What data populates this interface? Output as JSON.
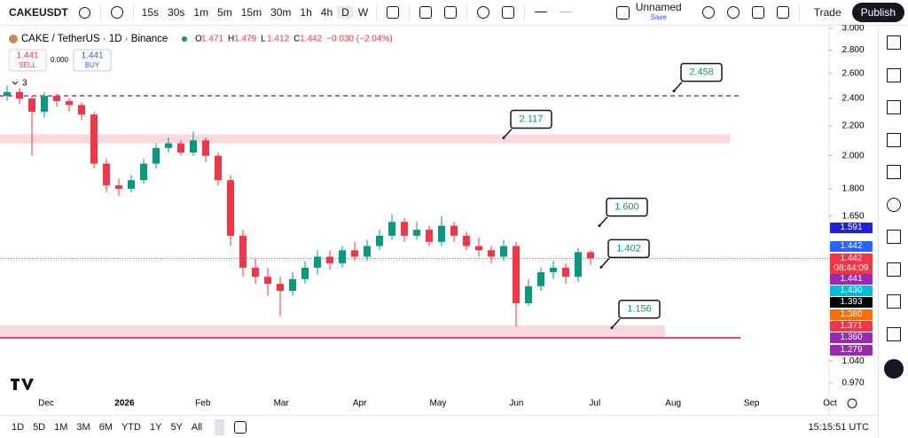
{
  "toolbar": {
    "symbol": "CAKEUSDT",
    "intervals": [
      "15s",
      "30s",
      "1m",
      "5m",
      "15m",
      "30m",
      "1h",
      "4h",
      "D",
      "W"
    ],
    "active_interval": "D",
    "layout_name": "Unnamed",
    "save": "Save",
    "trade": "Trade",
    "publish": "Publish"
  },
  "legend": {
    "title": "CAKE / TetherUS · 1D · Binance",
    "ohlc": [
      {
        "label": "O",
        "value": "1.471"
      },
      {
        "label": "H",
        "value": "1.479"
      },
      {
        "label": "L",
        "value": "1.412"
      },
      {
        "label": "C",
        "value": "1.442"
      }
    ],
    "change": "−0.030 (−2.04%)",
    "sell": {
      "price": "1.441",
      "label": "SELL"
    },
    "spread": "0.000",
    "buy": {
      "price": "1.441",
      "label": "BUY"
    },
    "indicators_count": "3"
  },
  "chart_data": {
    "type": "candlestick",
    "log_scale": true,
    "months": [
      "Dec",
      "2026",
      "Feb",
      "Mar",
      "Apr",
      "May",
      "Jun",
      "Jul",
      "Aug",
      "Sep",
      "Oct"
    ],
    "open": [
      2.42,
      2.45,
      2.4,
      2.3,
      2.42,
      2.38,
      2.35,
      2.28,
      1.95,
      1.82,
      1.8,
      1.85,
      1.95,
      2.05,
      2.08,
      2.02,
      2.1,
      2.0,
      1.85,
      1.55,
      1.4,
      1.36,
      1.33,
      1.3,
      1.35,
      1.4,
      1.45,
      1.42,
      1.48,
      1.45,
      1.5,
      1.55,
      1.62,
      1.55,
      1.58,
      1.52,
      1.6,
      1.55,
      1.5,
      1.48,
      1.45,
      1.5,
      1.25,
      1.32,
      1.38,
      1.4,
      1.36,
      1.471
    ],
    "high": [
      2.5,
      2.48,
      2.42,
      2.45,
      2.44,
      2.4,
      2.37,
      2.3,
      1.98,
      1.86,
      1.88,
      1.98,
      2.08,
      2.12,
      2.1,
      2.16,
      2.12,
      2.02,
      1.88,
      1.58,
      1.44,
      1.4,
      1.36,
      1.38,
      1.43,
      1.48,
      1.48,
      1.5,
      1.52,
      1.53,
      1.58,
      1.66,
      1.64,
      1.62,
      1.6,
      1.65,
      1.62,
      1.57,
      1.54,
      1.5,
      1.53,
      1.52,
      1.35,
      1.4,
      1.43,
      1.42,
      1.49,
      1.479
    ],
    "low": [
      2.38,
      2.36,
      2.0,
      2.26,
      2.34,
      2.3,
      2.24,
      1.92,
      1.78,
      1.76,
      1.78,
      1.83,
      1.92,
      2.02,
      2.0,
      2.0,
      1.96,
      1.82,
      1.5,
      1.36,
      1.33,
      1.28,
      1.2,
      1.28,
      1.33,
      1.37,
      1.39,
      1.4,
      1.43,
      1.43,
      1.48,
      1.53,
      1.52,
      1.53,
      1.5,
      1.5,
      1.52,
      1.48,
      1.45,
      1.42,
      1.43,
      1.16,
      1.24,
      1.3,
      1.35,
      1.33,
      1.34,
      1.412
    ],
    "close": [
      2.45,
      2.4,
      2.3,
      2.42,
      2.38,
      2.35,
      2.28,
      1.95,
      1.82,
      1.8,
      1.85,
      1.95,
      2.05,
      2.08,
      2.02,
      2.1,
      2.0,
      1.85,
      1.55,
      1.4,
      1.36,
      1.33,
      1.3,
      1.35,
      1.4,
      1.45,
      1.42,
      1.48,
      1.45,
      1.5,
      1.55,
      1.62,
      1.55,
      1.58,
      1.52,
      1.6,
      1.55,
      1.5,
      1.48,
      1.45,
      1.5,
      1.25,
      1.32,
      1.38,
      1.4,
      1.36,
      1.471,
      1.442
    ],
    "up_color": "#089981",
    "down_color": "#f23645",
    "ylim": [
      0.94,
      3.03
    ],
    "yticks": [
      {
        "value": 3,
        "label": "3.000"
      },
      {
        "value": 2.8,
        "label": "2.800"
      },
      {
        "value": 2.6,
        "label": "2.600"
      },
      {
        "value": 2.4,
        "label": "2.400"
      },
      {
        "value": 2.2,
        "label": "2.200"
      },
      {
        "value": 2,
        "label": "2.000"
      },
      {
        "value": 1.8,
        "label": "1.800"
      },
      {
        "value": 1.65,
        "label": "1.650"
      },
      {
        "value": 1.04,
        "label": "1.040"
      },
      {
        "value": 0.97,
        "label": "0.970"
      }
    ],
    "zones": [
      {
        "low": 2.08,
        "high": 2.14,
        "color": "#fcd9dc"
      },
      {
        "low": 1.12,
        "high": 1.165,
        "color": "#fcd9dc"
      }
    ],
    "lines": [
      {
        "value": 2.42,
        "color": "#a43d8f",
        "dashed": true
      },
      {
        "value": 1.12,
        "color": "#c2185b",
        "dashed": false
      }
    ],
    "annotations": [
      {
        "value": 2.458,
        "label": "2.458"
      },
      {
        "value": 2.117,
        "label": "2.117"
      },
      {
        "value": 1.6,
        "label": "1.600"
      },
      {
        "value": 1.402,
        "label": "1.402"
      },
      {
        "value": 1.156,
        "label": "1.156"
      }
    ]
  },
  "price_badges": [
    {
      "text": "1.591",
      "color": "#1e22d8"
    },
    {
      "text": "1.442",
      "color": "#2962ff"
    },
    {
      "text": "1.442",
      "color": "#f23645"
    },
    {
      "text": "1.441",
      "color": "#9c27b0"
    },
    {
      "text": "1.430",
      "color": "#00bcd4"
    },
    {
      "text": "1.393",
      "color": "#000000"
    },
    {
      "text": "1.380",
      "color": "#ff6d00"
    },
    {
      "text": "1.371",
      "color": "#f23645"
    },
    {
      "text": "1.360",
      "color": "#9c27b0"
    },
    {
      "text": "1.279",
      "color": "#9c27b0"
    }
  ],
  "countdown": "08:44:09",
  "ranges": [
    "1D",
    "5D",
    "1M",
    "3M",
    "6M",
    "YTD",
    "1Y",
    "5Y",
    "All"
  ],
  "clock": "15:15:51 UTC"
}
